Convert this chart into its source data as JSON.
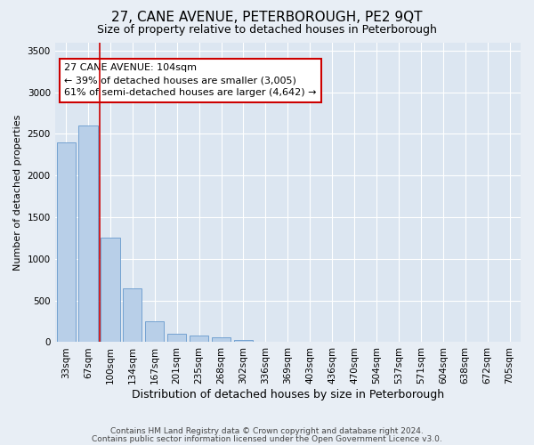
{
  "title": "27, CANE AVENUE, PETERBOROUGH, PE2 9QT",
  "subtitle": "Size of property relative to detached houses in Peterborough",
  "xlabel": "Distribution of detached houses by size in Peterborough",
  "ylabel": "Number of detached properties",
  "footnote1": "Contains HM Land Registry data © Crown copyright and database right 2024.",
  "footnote2": "Contains public sector information licensed under the Open Government Licence v3.0.",
  "bar_values": [
    2400,
    2600,
    1250,
    650,
    250,
    100,
    75,
    60,
    30,
    5,
    3,
    2,
    1,
    0,
    0,
    0,
    0,
    0,
    0,
    0,
    0
  ],
  "categories": [
    "33sqm",
    "67sqm",
    "100sqm",
    "134sqm",
    "167sqm",
    "201sqm",
    "235sqm",
    "268sqm",
    "302sqm",
    "336sqm",
    "369sqm",
    "403sqm",
    "436sqm",
    "470sqm",
    "504sqm",
    "537sqm",
    "571sqm",
    "604sqm",
    "638sqm",
    "672sqm",
    "705sqm"
  ],
  "bar_color": "#b8cfe8",
  "bar_edge_color": "#6699cc",
  "vline_color": "#cc0000",
  "annotation_text": "27 CANE AVENUE: 104sqm\n← 39% of detached houses are smaller (3,005)\n61% of semi-detached houses are larger (4,642) →",
  "annotation_box_color": "#ffffff",
  "annotation_box_edge_color": "#cc0000",
  "ylim": [
    0,
    3600
  ],
  "yticks": [
    0,
    500,
    1000,
    1500,
    2000,
    2500,
    3000,
    3500
  ],
  "bg_color": "#e8eef5",
  "plot_bg_color": "#dce6f1",
  "grid_color": "#ffffff",
  "title_fontsize": 11,
  "subtitle_fontsize": 9,
  "annotation_fontsize": 8,
  "ylabel_fontsize": 8,
  "xlabel_fontsize": 9,
  "tick_fontsize": 7.5,
  "footnote_fontsize": 6.5
}
